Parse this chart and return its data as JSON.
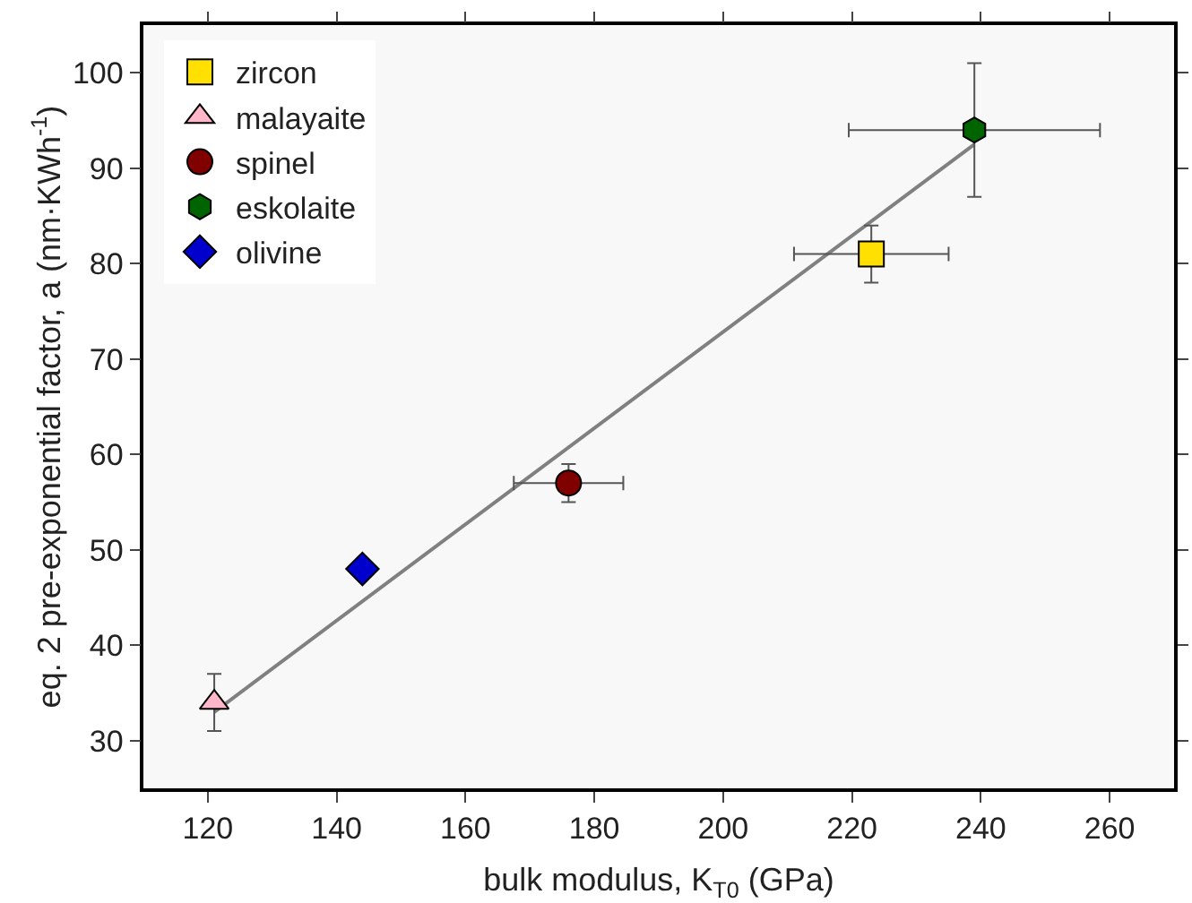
{
  "chart_data": {
    "type": "scatter",
    "xlabel": "bulk modulus, K$_{T0}$ (GPa)",
    "ylabel": "eq. 2 pre-exponential factor, a (nm·KWh$^{-1}$)",
    "xlim": [
      110,
      270
    ],
    "xticks": [
      120,
      140,
      160,
      180,
      200,
      220,
      240,
      260
    ],
    "ylim": [
      25,
      105
    ],
    "yticks": [
      30,
      40,
      50,
      60,
      70,
      80,
      90,
      100
    ],
    "grid": false,
    "legend": "top left",
    "series": [
      {
        "type": "line",
        "color": "#808080",
        "marker": "none",
        "line_style": "solid",
        "x": [
          121,
          239
        ],
        "values": [
          33,
          92.5
        ]
      },
      {
        "name": "zircon",
        "color": "#ffe000",
        "marker": "square",
        "x": [
          223
        ],
        "values": [
          81
        ],
        "errors": [
          3
        ],
        "xerrors": [
          12
        ]
      },
      {
        "name": "malayaite",
        "color": "#ffb6c8",
        "marker": "triangle",
        "x": [
          121
        ],
        "values": [
          34
        ],
        "errors": [
          3
        ],
        "xerrors": [
          null
        ]
      },
      {
        "name": "spinel",
        "color": "#800000",
        "marker": "circle",
        "x": [
          176
        ],
        "values": [
          57
        ],
        "errors": [
          2
        ],
        "xerrors": [
          8.5
        ]
      },
      {
        "name": "eskolaite",
        "color": "#006400",
        "x": [
          239
        ],
        "values": [
          94
        ],
        "errors": [
          7
        ],
        "xerrors": [
          19.5
        ]
      },
      {
        "name": "olivine",
        "color": "#0000cc",
        "marker": "diamond",
        "x": [
          144
        ],
        "values": [
          48
        ],
        "errors": [
          null
        ],
        "xerrors": [
          null
        ]
      }
    ]
  }
}
